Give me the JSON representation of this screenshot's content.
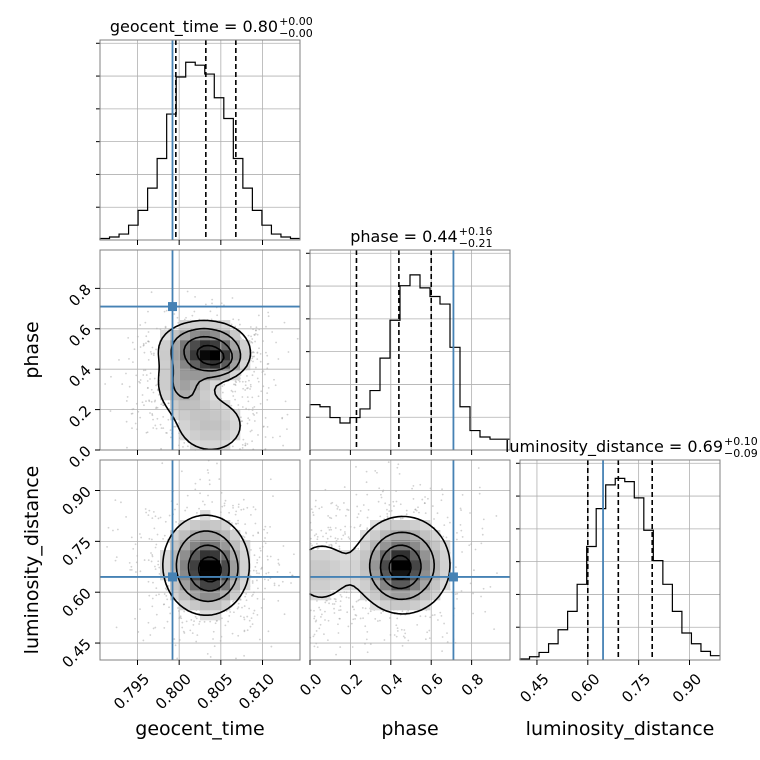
{
  "chart_data": {
    "type": "corner",
    "parameters": [
      {
        "key": "geocent_time",
        "label": "geocent_time",
        "title": "geocent_time = 0.80",
        "sup": "+0.00",
        "sub": "−0.00",
        "range": [
          0.7905,
          0.8145
        ],
        "ticks": [
          "0.795",
          "0.800",
          "0.805",
          "0.810"
        ],
        "tick_values": [
          0.795,
          0.8,
          0.805,
          0.81
        ],
        "truth": 0.7992,
        "quantiles": [
          0.7996,
          0.8032,
          0.8068
        ],
        "hist_edges": [
          0.7905,
          0.8145
        ],
        "hist_counts": [
          1,
          2,
          4,
          10,
          20,
          35,
          55,
          85,
          110,
          120,
          118,
          112,
          96,
          82,
          55,
          35,
          20,
          10,
          4,
          2,
          1
        ],
        "hist_ymax": 135
      },
      {
        "key": "phase",
        "label": "phase",
        "title": "phase = 0.44",
        "sup": "+0.16",
        "sub": "−0.21",
        "range": [
          0.0,
          0.99
        ],
        "ticks": [
          "0.0",
          "0.2",
          "0.4",
          "0.6",
          "0.8"
        ],
        "tick_values": [
          0.0,
          0.2,
          0.4,
          0.6,
          0.8
        ],
        "truth": 0.71,
        "quantiles": [
          0.23,
          0.44,
          0.6
        ],
        "hist_edges": [
          0.0,
          0.99
        ],
        "hist_counts": [
          42,
          40,
          30,
          25,
          30,
          38,
          55,
          85,
          120,
          152,
          162,
          150,
          142,
          135,
          95,
          40,
          18,
          12,
          10,
          10
        ],
        "hist_ymax": 185
      },
      {
        "key": "luminosity_distance",
        "label": "luminosity_distance",
        "title": "luminosity_distance = 0.69",
        "sup": "+0.10",
        "sub": "−0.09",
        "range": [
          0.4,
          0.99
        ],
        "ticks": [
          "0.45",
          "0.60",
          "0.75",
          "0.90"
        ],
        "tick_values": [
          0.45,
          0.6,
          0.75,
          0.9
        ],
        "truth": 0.645,
        "quantiles": [
          0.6,
          0.69,
          0.79
        ],
        "hist_edges": [
          0.4,
          0.99
        ],
        "hist_counts": [
          1,
          3,
          7,
          15,
          28,
          45,
          70,
          105,
          140,
          162,
          168,
          165,
          150,
          120,
          92,
          70,
          45,
          25,
          15,
          8,
          4
        ],
        "hist_ymax": 185
      }
    ],
    "pairs": [
      {
        "x": "geocent_time",
        "y": "phase",
        "truth": [
          0.7992,
          0.71
        ],
        "peaks": [
          {
            "x": 0.803,
            "y": 0.51,
            "sx": 0.0028,
            "sy": 0.07,
            "w": 1.0
          },
          {
            "x": 0.8045,
            "y": 0.44,
            "sx": 0.0018,
            "sy": 0.05,
            "w": 0.8
          },
          {
            "x": 0.8005,
            "y": 0.33,
            "sx": 0.002,
            "sy": 0.09,
            "w": 0.5
          },
          {
            "x": 0.8038,
            "y": 0.12,
            "sx": 0.003,
            "sy": 0.1,
            "w": 0.35
          }
        ]
      },
      {
        "x": "geocent_time",
        "y": "luminosity_distance",
        "truth": [
          0.7992,
          0.645
        ],
        "peaks": [
          {
            "x": 0.8032,
            "y": 0.68,
            "sx": 0.0028,
            "sy": 0.08,
            "w": 1.0
          },
          {
            "x": 0.804,
            "y": 0.66,
            "sx": 0.0015,
            "sy": 0.04,
            "w": 0.6
          }
        ]
      },
      {
        "x": "phase",
        "y": "luminosity_distance",
        "truth": [
          0.71,
          0.645
        ],
        "peaks": [
          {
            "x": 0.46,
            "y": 0.68,
            "sx": 0.13,
            "sy": 0.08,
            "w": 1.0
          },
          {
            "x": 0.44,
            "y": 0.67,
            "sx": 0.06,
            "sy": 0.04,
            "w": 0.7
          },
          {
            "x": 0.05,
            "y": 0.66,
            "sx": 0.1,
            "sy": 0.07,
            "w": 0.35
          }
        ]
      }
    ],
    "colors": {
      "truth": "#4682b4",
      "hist": "#000000",
      "grid": "#b0b0b0",
      "frame": "#808080"
    },
    "grid": true
  }
}
